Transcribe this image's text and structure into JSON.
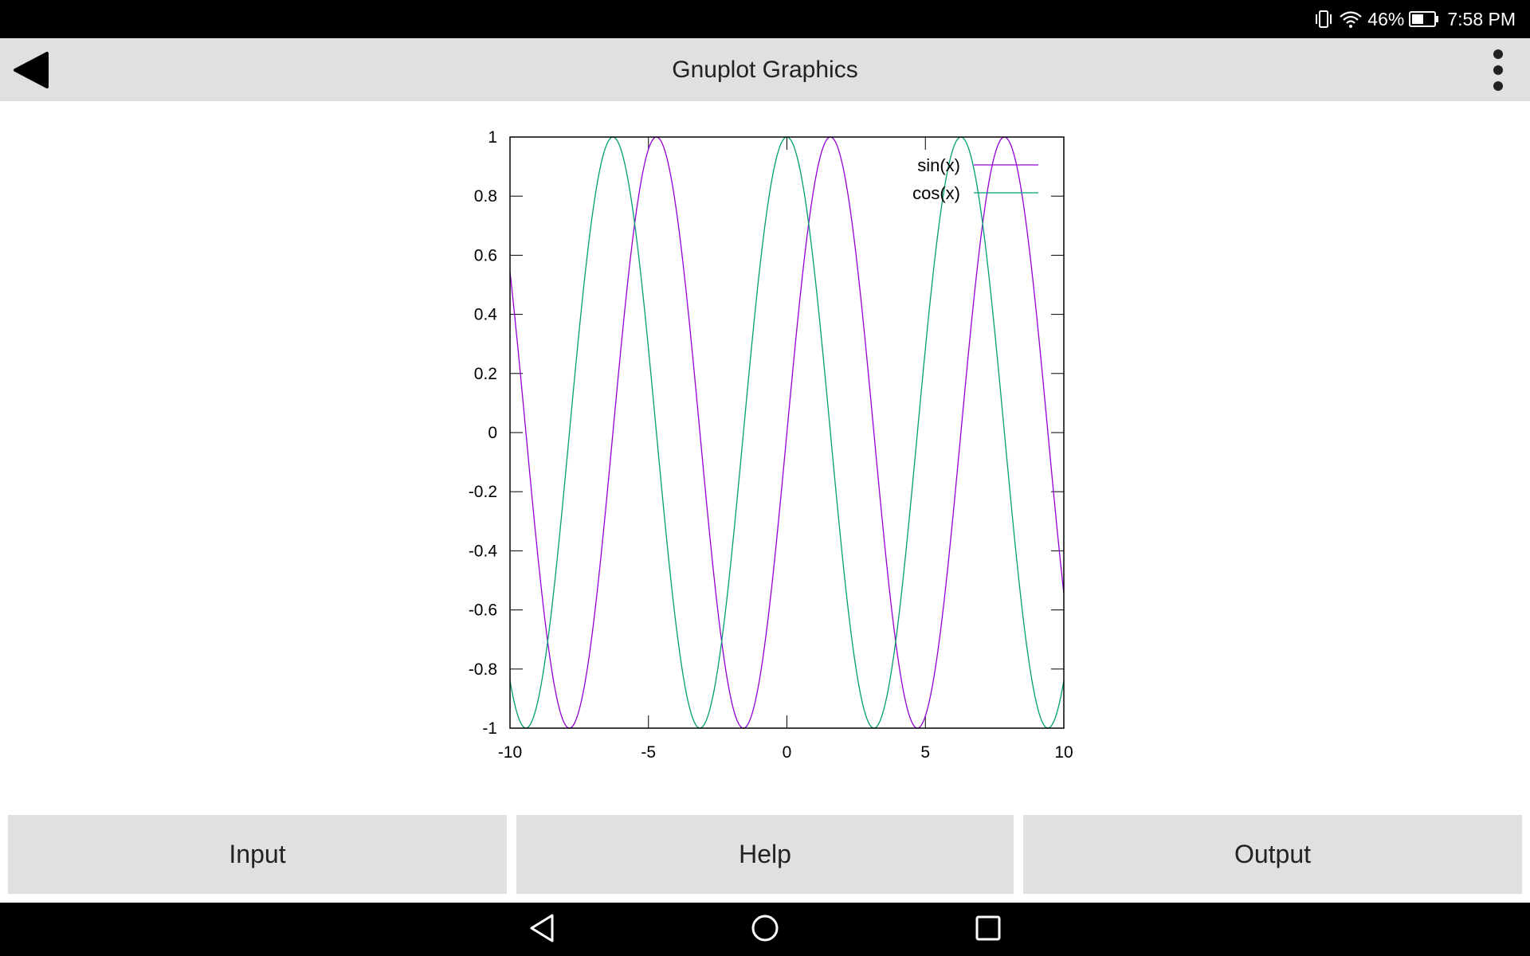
{
  "status_bar": {
    "battery_percent": "46%",
    "time": "7:58 PM",
    "icons": [
      "vibrate-icon",
      "wifi-icon",
      "battery-icon"
    ]
  },
  "app_bar": {
    "title": "Gnuplot Graphics",
    "back_icon": "back-arrow-icon",
    "menu_icon": "overflow-menu-icon"
  },
  "chart_data": {
    "type": "line",
    "title": "",
    "xlabel": "",
    "ylabel": "",
    "xlim": [
      -10,
      10
    ],
    "ylim": [
      -1,
      1
    ],
    "x_ticks": [
      "-10",
      "-5",
      "0",
      "5",
      "10"
    ],
    "y_ticks": [
      "1",
      "0.8",
      "0.6",
      "0.4",
      "0.2",
      "0",
      "-0.2",
      "-0.4",
      "-0.6",
      "-0.8",
      "-1"
    ],
    "legend_placement": "top-right",
    "grid": false,
    "series": [
      {
        "name": "sin(x)",
        "function": "sin",
        "color": "#9400d3"
      },
      {
        "name": "cos(x)",
        "function": "cos",
        "color": "#009e73"
      }
    ]
  },
  "buttons": {
    "input": "Input",
    "help": "Help",
    "output": "Output"
  },
  "nav_bar": {
    "icons": [
      "nav-back-icon",
      "nav-home-icon",
      "nav-recents-icon"
    ]
  }
}
